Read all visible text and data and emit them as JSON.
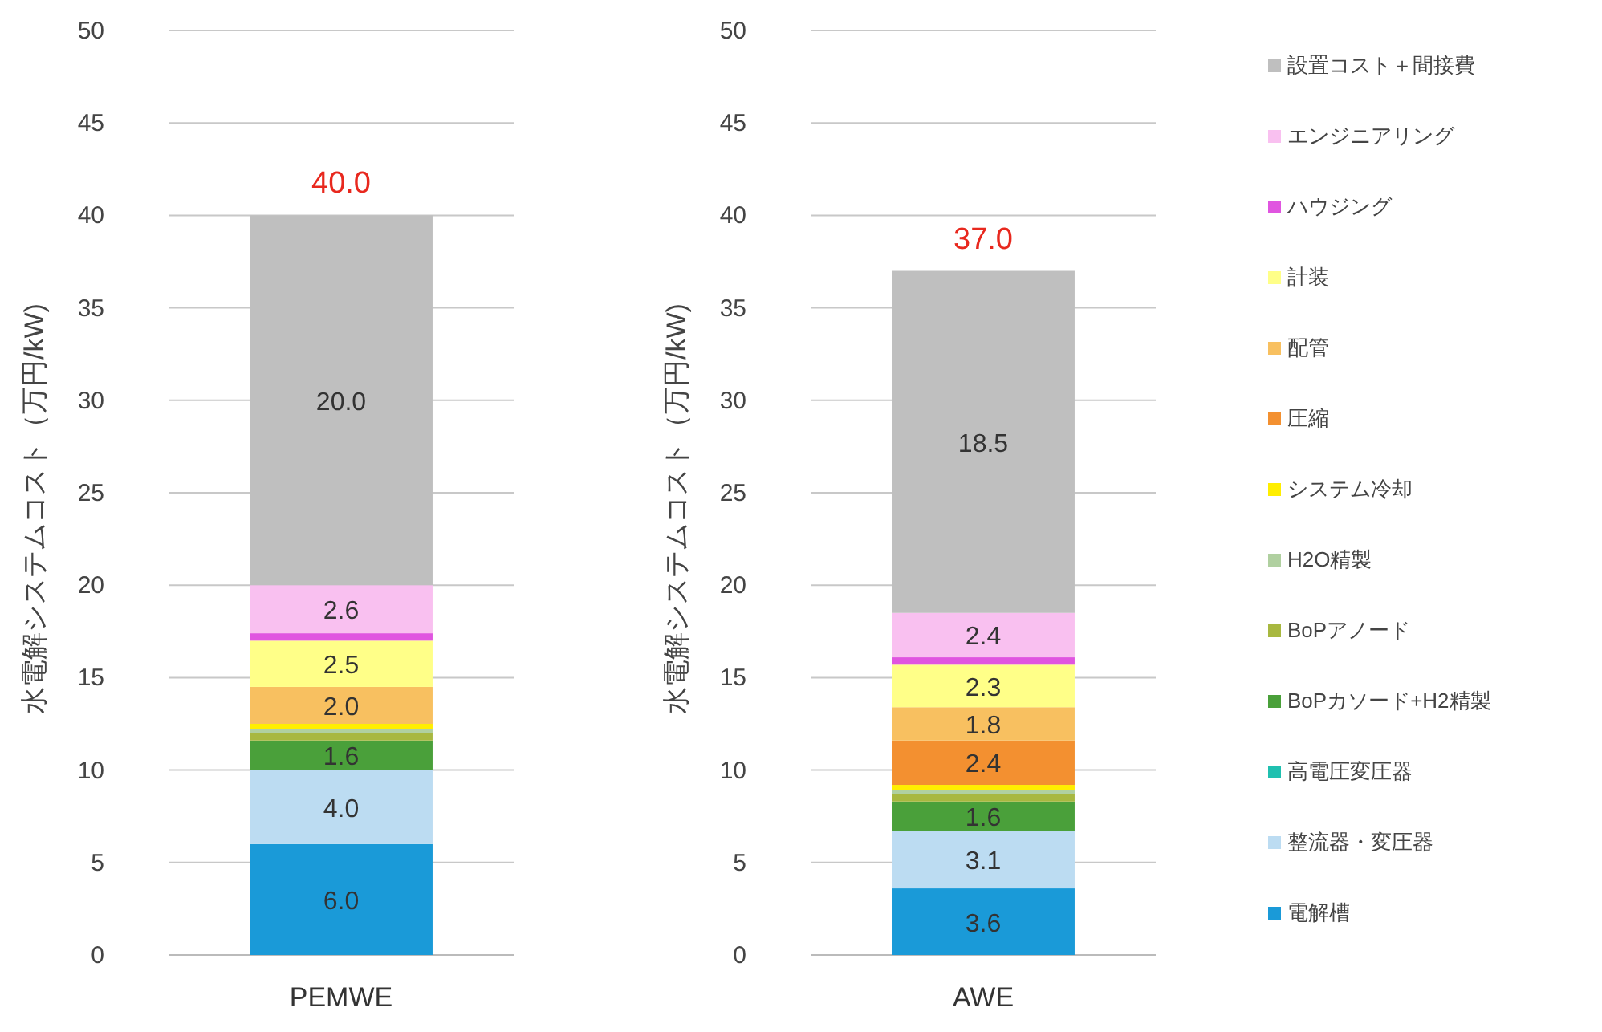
{
  "chart_data": [
    {
      "type": "bar",
      "stacked": true,
      "categories": [
        "PEMWE"
      ],
      "ylabel": "水電解システムコスト（万円/kW)",
      "ylim": [
        0,
        50
      ],
      "yticks": [
        0,
        5,
        10,
        15,
        20,
        25,
        30,
        35,
        40,
        45,
        50
      ],
      "grid": "y",
      "legend": false,
      "totals": [
        "40.0"
      ],
      "series": [
        {
          "color": "#1a9ad8",
          "values": [
            6.0
          ],
          "value_labels": [
            "6.0"
          ]
        },
        {
          "color": "#bcdcf2",
          "values": [
            4.0
          ],
          "value_labels": [
            "4.0"
          ]
        },
        {
          "color": "#20c0b0",
          "values": [
            0
          ],
          "value_labels": [
            null
          ]
        },
        {
          "color": "#4aa03a",
          "values": [
            1.6
          ],
          "value_labels": [
            "1.6"
          ]
        },
        {
          "color": "#a8b840",
          "values": [
            0.4
          ],
          "value_labels": [
            null
          ]
        },
        {
          "color": "#b0d0a0",
          "values": [
            0.2
          ],
          "value_labels": [
            null
          ]
        },
        {
          "color": "#ffee00",
          "values": [
            0.3
          ],
          "value_labels": [
            null
          ]
        },
        {
          "color": "#f39030",
          "values": [
            0
          ],
          "value_labels": [
            null
          ]
        },
        {
          "color": "#f8c060",
          "values": [
            2.0
          ],
          "value_labels": [
            "2.0"
          ]
        },
        {
          "color": "#ffff88",
          "values": [
            2.5
          ],
          "value_labels": [
            "2.5"
          ]
        },
        {
          "color": "#e055e0",
          "values": [
            0.4
          ],
          "value_labels": [
            null
          ]
        },
        {
          "color": "#f9c0f0",
          "values": [
            2.6
          ],
          "value_labels": [
            "2.6"
          ]
        },
        {
          "color": "#bfbfbf",
          "values": [
            20.0
          ],
          "value_labels": [
            "20.0"
          ]
        }
      ]
    },
    {
      "type": "bar",
      "stacked": true,
      "categories": [
        "AWE"
      ],
      "ylabel": "水電解システムコスト（万円/kW)",
      "ylim": [
        0,
        50
      ],
      "yticks": [
        0,
        5,
        10,
        15,
        20,
        25,
        30,
        35,
        40,
        45,
        50
      ],
      "grid": "y",
      "legend": "right",
      "totals": [
        "37.0"
      ],
      "series": [
        {
          "name": "電解槽",
          "color": "#1a9ad8",
          "values": [
            3.6
          ],
          "value_labels": [
            "3.6"
          ]
        },
        {
          "name": "整流器・変圧器",
          "color": "#bcdcf2",
          "values": [
            3.1
          ],
          "value_labels": [
            "3.1"
          ]
        },
        {
          "name": "高電圧変圧器",
          "color": "#20c0b0",
          "values": [
            0
          ],
          "value_labels": [
            null
          ]
        },
        {
          "name": "BoPカソード+H2精製",
          "color": "#4aa03a",
          "values": [
            1.6
          ],
          "value_labels": [
            "1.6"
          ]
        },
        {
          "name": "BoPアノード",
          "color": "#a8b840",
          "values": [
            0.4
          ],
          "value_labels": [
            null
          ]
        },
        {
          "name": "H2O精製",
          "color": "#b0d0a0",
          "values": [
            0.2
          ],
          "value_labels": [
            null
          ]
        },
        {
          "name": "システム冷却",
          "color": "#ffee00",
          "values": [
            0.3
          ],
          "value_labels": [
            null
          ]
        },
        {
          "name": "圧縮",
          "color": "#f39030",
          "values": [
            2.4
          ],
          "value_labels": [
            "2.4"
          ]
        },
        {
          "name": "配管",
          "color": "#f8c060",
          "values": [
            1.8
          ],
          "value_labels": [
            "1.8"
          ]
        },
        {
          "name": "計装",
          "color": "#ffff88",
          "values": [
            2.3
          ],
          "value_labels": [
            "2.3"
          ]
        },
        {
          "name": "ハウジング",
          "color": "#e055e0",
          "values": [
            0.4
          ],
          "value_labels": [
            null
          ]
        },
        {
          "name": "エンジニアリング",
          "color": "#f9c0f0",
          "values": [
            2.4
          ],
          "value_labels": [
            "2.4"
          ]
        },
        {
          "name": "設置コスト＋間接費",
          "color": "#bfbfbf",
          "values": [
            18.5
          ],
          "value_labels": [
            "18.5"
          ]
        }
      ]
    }
  ]
}
